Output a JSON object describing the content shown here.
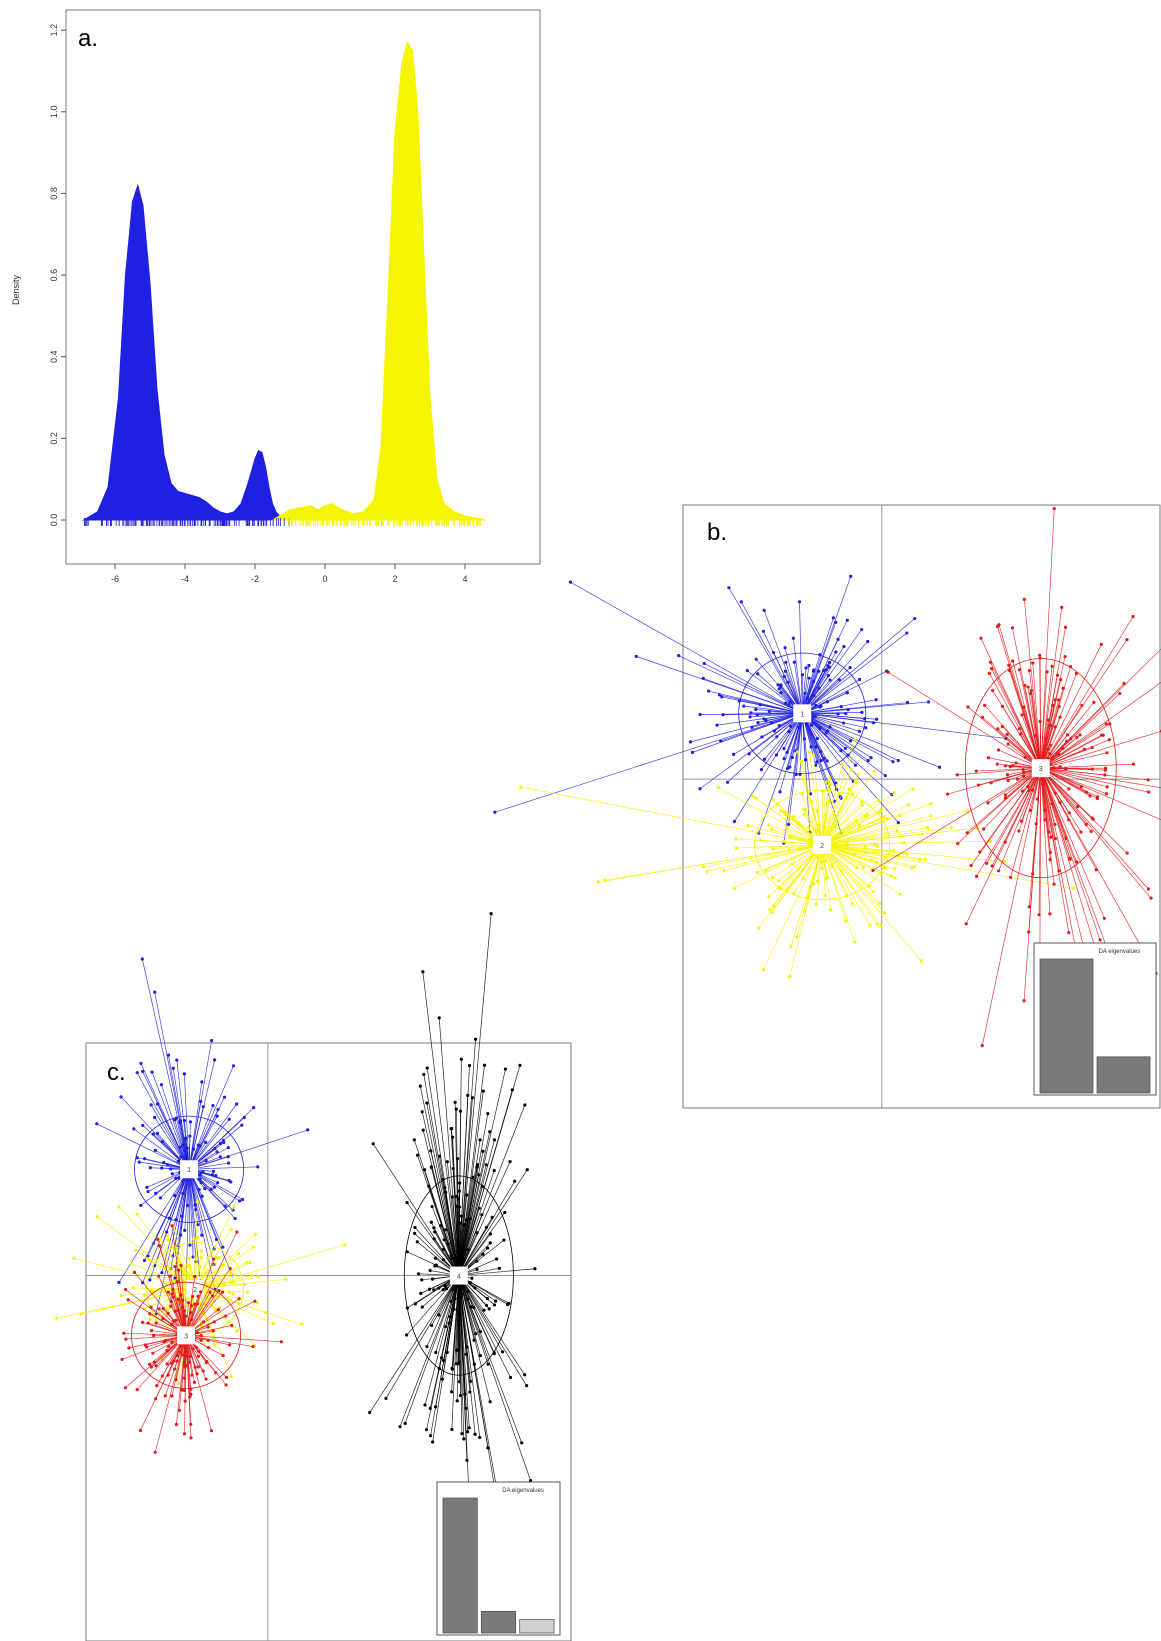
{
  "colors": {
    "blue": "#2020e0",
    "yellow": "#f5f500",
    "red": "#e41a1c",
    "black": "#000000",
    "bar_dark": "#7a7a7a",
    "bar_light": "#d0d0d0",
    "frame": "#777777"
  },
  "chart_data": [
    {
      "panel": "a.",
      "type": "area",
      "title": "",
      "xlabel": "",
      "ylabel": "Density",
      "xlim": [
        -7,
        5
      ],
      "ylim": [
        0,
        1.22
      ],
      "x_ticks": [
        "-6",
        "-4",
        "-2",
        "0",
        "2",
        "4"
      ],
      "y_ticks": [
        "0.0",
        "0.2",
        "0.4",
        "0.6",
        "0.8",
        "1.0",
        "1.2"
      ],
      "series": [
        {
          "color": "blue",
          "x": [
            -6.9,
            -6.5,
            -6.2,
            -5.9,
            -5.7,
            -5.5,
            -5.35,
            -5.2,
            -5.0,
            -4.8,
            -4.6,
            -4.4,
            -4.2,
            -4.0,
            -3.8,
            -3.6,
            -3.4,
            -3.2,
            -3.0,
            -2.8,
            -2.6,
            -2.4,
            -2.2,
            -2.0,
            -1.9,
            -1.8,
            -1.7,
            -1.6,
            -1.5,
            -1.4,
            -1.3,
            -1.2,
            -1.1
          ],
          "y": [
            0.0,
            0.02,
            0.08,
            0.3,
            0.6,
            0.78,
            0.82,
            0.77,
            0.58,
            0.32,
            0.16,
            0.09,
            0.07,
            0.065,
            0.06,
            0.055,
            0.045,
            0.03,
            0.02,
            0.015,
            0.02,
            0.04,
            0.09,
            0.15,
            0.17,
            0.165,
            0.13,
            0.08,
            0.04,
            0.02,
            0.01,
            0.005,
            0.0
          ]
        },
        {
          "color": "yellow",
          "x": [
            -1.5,
            -1.3,
            -1.0,
            -0.7,
            -0.4,
            -0.2,
            0.0,
            0.2,
            0.5,
            0.8,
            1.1,
            1.4,
            1.6,
            1.8,
            2.0,
            2.2,
            2.35,
            2.5,
            2.65,
            2.8,
            3.0,
            3.2,
            3.4,
            3.7,
            4.0,
            4.3,
            4.6
          ],
          "y": [
            0.0,
            0.01,
            0.025,
            0.03,
            0.035,
            0.025,
            0.035,
            0.04,
            0.025,
            0.015,
            0.02,
            0.05,
            0.18,
            0.55,
            0.95,
            1.12,
            1.17,
            1.15,
            1.0,
            0.7,
            0.3,
            0.1,
            0.04,
            0.02,
            0.01,
            0.005,
            0.0
          ]
        }
      ],
      "rug": [
        {
          "color": "blue",
          "range": [
            -6.9,
            -1.0
          ]
        },
        {
          "color": "yellow",
          "range": [
            -1.2,
            4.5
          ]
        }
      ]
    },
    {
      "panel": "b.",
      "type": "scatter",
      "title": "",
      "xlabel": "",
      "ylabel": "",
      "xlim": [
        -5,
        7
      ],
      "ylim": [
        -6,
        5
      ],
      "clusters": [
        {
          "color": "blue",
          "center": [
            -2.0,
            1.2
          ],
          "spread": [
            1.2,
            0.9
          ],
          "count": 180,
          "ellipse": [
            1.6,
            1.1
          ],
          "label": "1"
        },
        {
          "color": "yellow",
          "center": [
            -1.5,
            -1.2
          ],
          "spread": [
            1.4,
            0.8
          ],
          "count": 180,
          "ellipse": [
            1.7,
            1.0
          ],
          "label": "2"
        },
        {
          "color": "red",
          "center": [
            4.0,
            0.2
          ],
          "spread": [
            1.3,
            1.5
          ],
          "count": 200,
          "ellipse": [
            1.9,
            2.0
          ],
          "label": "3"
        }
      ],
      "inset": {
        "title": "DA eigenvalues",
        "values": [
          1.0,
          0.27
        ],
        "colors": [
          "bar_dark",
          "bar_dark"
        ]
      }
    },
    {
      "panel": "c.",
      "type": "scatter",
      "title": "",
      "xlabel": "",
      "ylabel": "",
      "xlim": [
        -3,
        5
      ],
      "ylim": [
        -5.5,
        3.5
      ],
      "clusters": [
        {
          "color": "blue",
          "center": [
            -1.3,
            1.6
          ],
          "spread": [
            0.5,
            0.9
          ],
          "count": 150,
          "ellipse": [
            0.9,
            0.8
          ],
          "label": "1"
        },
        {
          "color": "yellow",
          "center": [
            -1.2,
            -0.2
          ],
          "spread": [
            0.6,
            0.5
          ],
          "count": 120,
          "ellipse": [
            0.8,
            0.7
          ],
          "label": "2"
        },
        {
          "color": "red",
          "center": [
            -1.35,
            -0.9
          ],
          "spread": [
            0.4,
            0.6
          ],
          "count": 160,
          "ellipse": [
            0.9,
            0.8
          ],
          "label": "3"
        },
        {
          "color": "black",
          "center": [
            3.15,
            0.0
          ],
          "spread": [
            0.4,
            1.6
          ],
          "count": 220,
          "ellipse": [
            0.9,
            1.5
          ],
          "label": "4"
        }
      ],
      "inset": {
        "title": "DA eigenvalues",
        "values": [
          1.0,
          0.16,
          0.1
        ],
        "colors": [
          "bar_dark",
          "bar_dark",
          "bar_light"
        ]
      }
    }
  ]
}
